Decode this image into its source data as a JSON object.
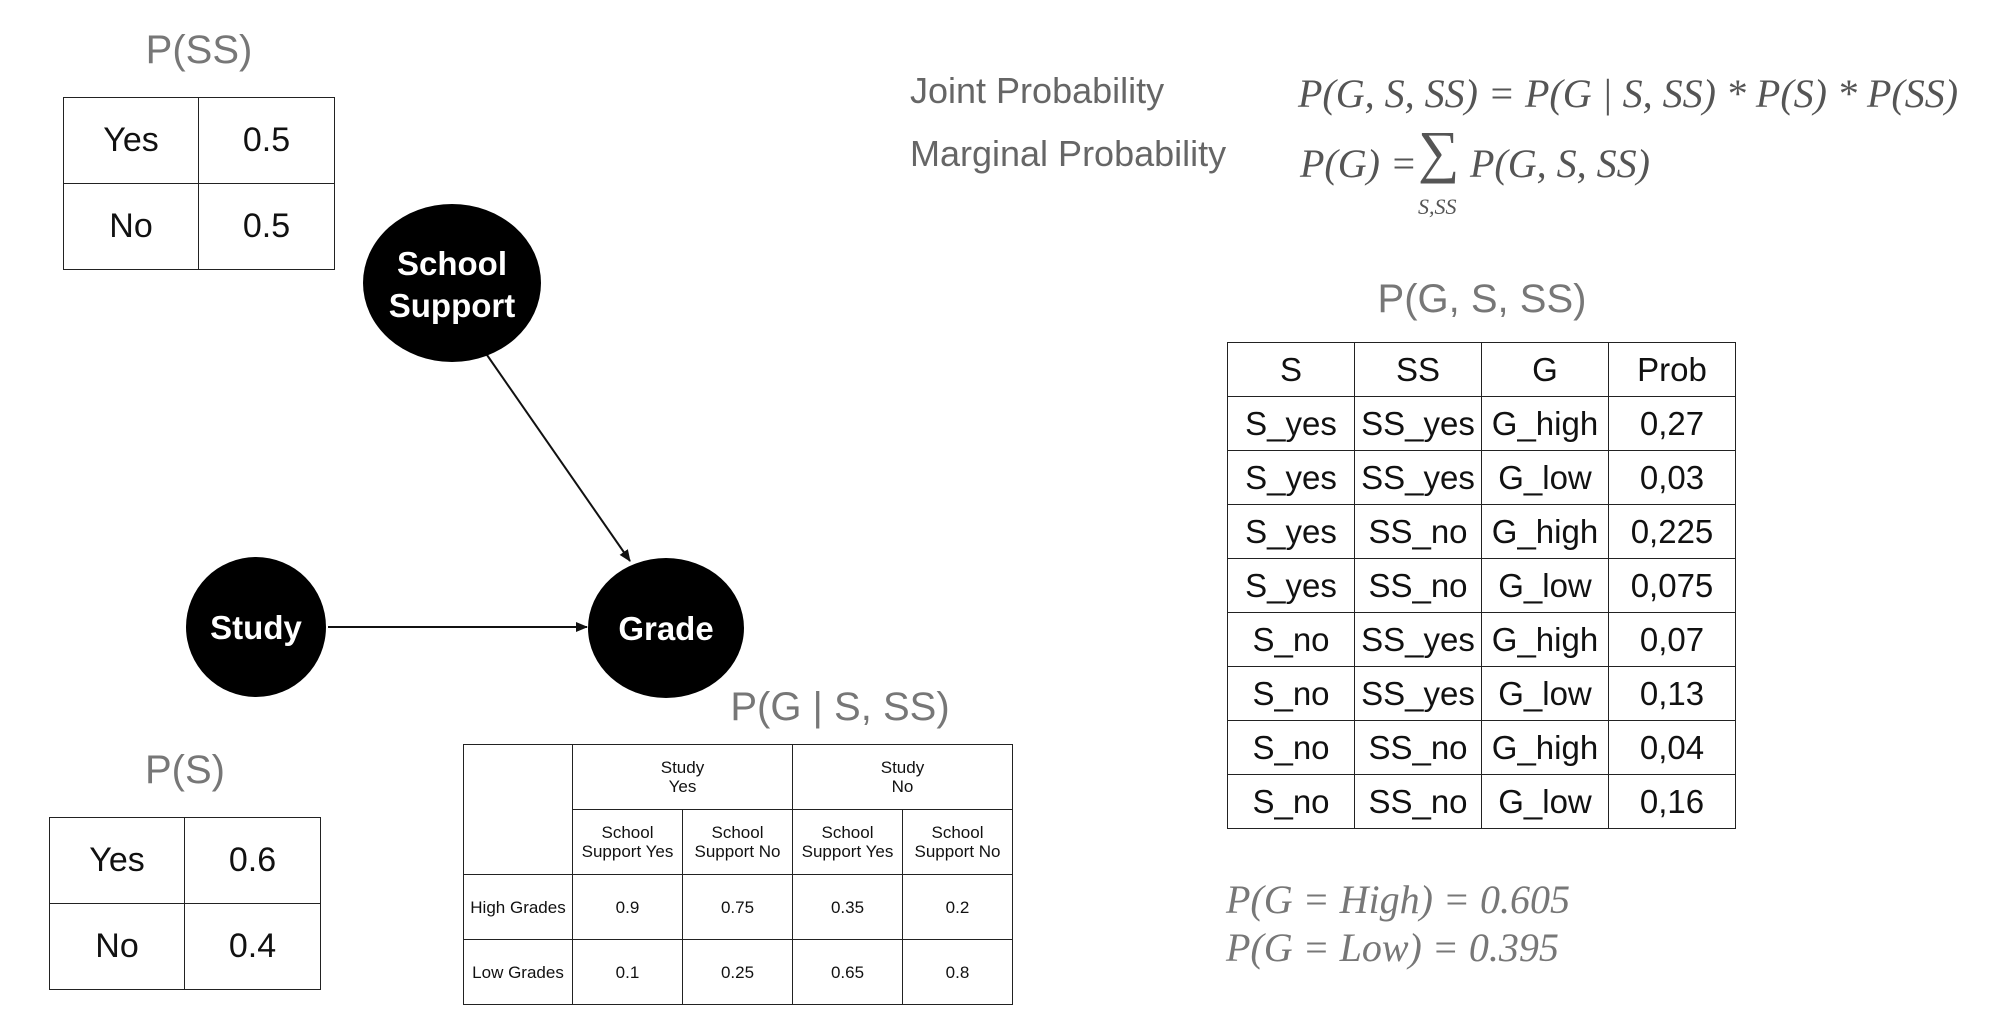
{
  "prior_ss": {
    "title": "P(SS)",
    "rows": [
      {
        "label": "Yes",
        "value": "0.5"
      },
      {
        "label": "No",
        "value": "0.5"
      }
    ]
  },
  "prior_s": {
    "title": "P(S)",
    "rows": [
      {
        "label": "Yes",
        "value": "0.6"
      },
      {
        "label": "No",
        "value": "0.4"
      }
    ]
  },
  "network": {
    "nodes": {
      "school_support": [
        "School",
        "Support"
      ],
      "study": "Study",
      "grade": "Grade"
    }
  },
  "cpt": {
    "title": "P(G | S, SS)",
    "groups": [
      {
        "line1": "Study",
        "line2": "Yes"
      },
      {
        "line1": "Study",
        "line2": "No"
      }
    ],
    "subheaders": [
      {
        "line1": "School",
        "line2": "Support Yes"
      },
      {
        "line1": "School",
        "line2": "Support No"
      },
      {
        "line1": "School",
        "line2": "Support Yes"
      },
      {
        "line1": "School",
        "line2": "Support No"
      }
    ],
    "rows": [
      {
        "label": "High Grades",
        "values": [
          "0.9",
          "0.75",
          "0.35",
          "0.2"
        ]
      },
      {
        "label": "Low Grades",
        "values": [
          "0.1",
          "0.25",
          "0.65",
          "0.8"
        ]
      }
    ]
  },
  "formulas": {
    "joint_label": "Joint Probability",
    "joint_expr": "P(G, S, SS) = P(G | S, SS) * P(S) * P(SS)",
    "marginal_label": "Marginal Probability",
    "marginal_lhs": "P(G) =",
    "marginal_sum": "∑",
    "marginal_sub": "S,SS",
    "marginal_rhs": "P(G, S, SS)"
  },
  "joint_table": {
    "title": "P(G, S, SS)",
    "headers": [
      "S",
      "SS",
      "G",
      "Prob"
    ],
    "rows": [
      [
        "S_yes",
        "SS_yes",
        "G_high",
        "0,27"
      ],
      [
        "S_yes",
        "SS_yes",
        "G_low",
        "0,03"
      ],
      [
        "S_yes",
        "SS_no",
        "G_high",
        "0,225"
      ],
      [
        "S_yes",
        "SS_no",
        "G_low",
        "0,075"
      ],
      [
        "S_no",
        "SS_yes",
        "G_high",
        "0,07"
      ],
      [
        "S_no",
        "SS_yes",
        "G_low",
        "0,13"
      ],
      [
        "S_no",
        "SS_no",
        "G_high",
        "0,04"
      ],
      [
        "S_no",
        "SS_no",
        "G_low",
        "0,16"
      ]
    ]
  },
  "results": {
    "high": "P(G = High) = 0.605",
    "low": "P(G = Low) = 0.395"
  }
}
